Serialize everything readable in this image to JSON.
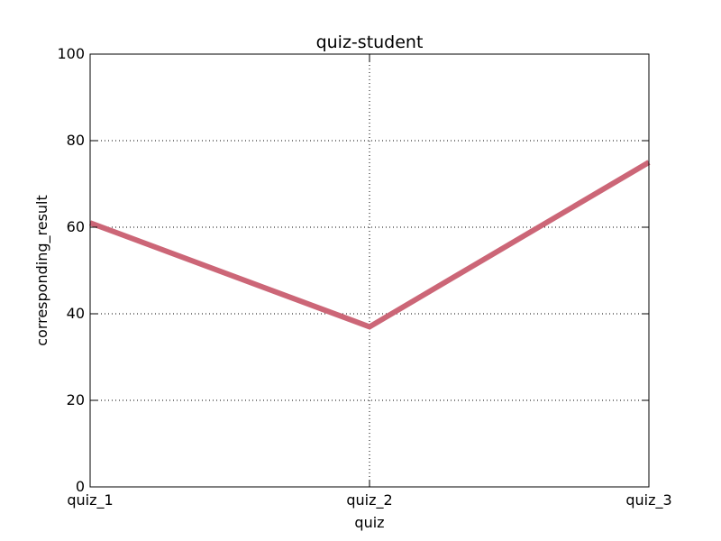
{
  "chart_data": {
    "type": "line",
    "title": "quiz-student",
    "xlabel": "quiz",
    "ylabel": "corresponding_result",
    "categories": [
      "quiz_1",
      "quiz_2",
      "quiz_3"
    ],
    "series": [
      {
        "values": [
          61,
          37,
          75
        ],
        "color": "#cc6677"
      }
    ],
    "ylim": [
      0,
      100
    ],
    "yticks": [
      0,
      20,
      40,
      60,
      80,
      100
    ],
    "grid": true
  }
}
